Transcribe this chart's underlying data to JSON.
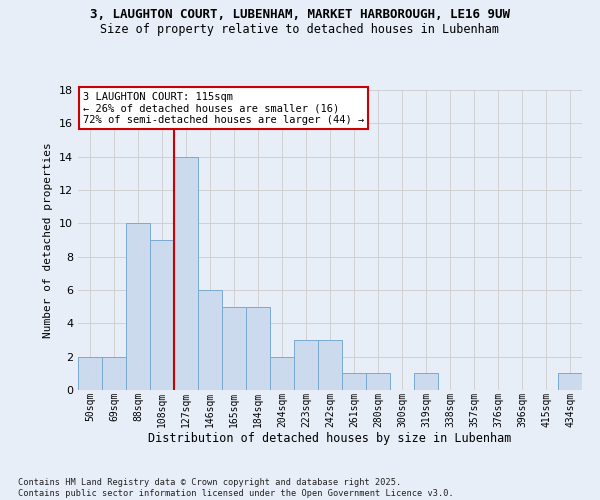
{
  "title1": "3, LAUGHTON COURT, LUBENHAM, MARKET HARBOROUGH, LE16 9UW",
  "title2": "Size of property relative to detached houses in Lubenham",
  "xlabel": "Distribution of detached houses by size in Lubenham",
  "ylabel": "Number of detached properties",
  "categories": [
    "50sqm",
    "69sqm",
    "88sqm",
    "108sqm",
    "127sqm",
    "146sqm",
    "165sqm",
    "184sqm",
    "204sqm",
    "223sqm",
    "242sqm",
    "261sqm",
    "280sqm",
    "300sqm",
    "319sqm",
    "338sqm",
    "357sqm",
    "376sqm",
    "396sqm",
    "415sqm",
    "434sqm"
  ],
  "values": [
    2,
    2,
    10,
    9,
    14,
    6,
    5,
    5,
    2,
    3,
    3,
    1,
    1,
    0,
    1,
    0,
    0,
    0,
    0,
    0,
    1
  ],
  "bar_color": "#ccdaee",
  "bar_edge_color": "#7aaad0",
  "grid_color": "#cccccc",
  "vline_x_idx": 3,
  "vline_color": "#cc0000",
  "annotation_text": "3 LAUGHTON COURT: 115sqm\n← 26% of detached houses are smaller (16)\n72% of semi-detached houses are larger (44) →",
  "annotation_box_color": "#ffffff",
  "annotation_box_edge": "#cc0000",
  "ylim": [
    0,
    18
  ],
  "yticks": [
    0,
    2,
    4,
    6,
    8,
    10,
    12,
    14,
    16,
    18
  ],
  "footer": "Contains HM Land Registry data © Crown copyright and database right 2025.\nContains public sector information licensed under the Open Government Licence v3.0.",
  "bg_color": "#e8eef8",
  "title1_fontsize": 9,
  "title2_fontsize": 9
}
